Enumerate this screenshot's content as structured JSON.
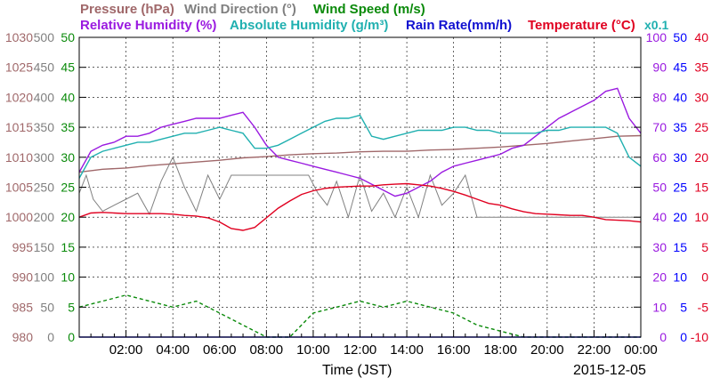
{
  "legend": {
    "pressure": "Pressure (hPa)",
    "wind_direction": "Wind Direction (°)",
    "wind_speed": "Wind Speed (m/s)",
    "relative_humidity": "Relative Humidity (%)",
    "absolute_humidity": "Absolute Humidity (g/m³)",
    "rain_rate": "Rain Rate(mm/h)",
    "temperature": "Temperature (°C)",
    "scale_note": "x0.1"
  },
  "footer": {
    "xlabel": "Time (JST)",
    "date": "2015-12-05"
  },
  "colors": {
    "pressure": "#a0686a",
    "wind_direction": "#808080",
    "wind_speed": "#0a8a0a",
    "relative_humidity": "#9a1ae0",
    "absolute_humidity": "#20b0b0",
    "rain_rate": "#1010d0",
    "temperature": "#e00020",
    "rain_rate_scale": "#0000ff"
  },
  "chart_data": {
    "type": "line",
    "xlabel": "Time (JST)",
    "xlim": [
      0,
      24
    ],
    "x_ticks": [
      "02:00",
      "04:00",
      "06:00",
      "08:00",
      "10:00",
      "12:00",
      "14:00",
      "16:00",
      "18:00",
      "20:00",
      "22:00",
      "00:00"
    ],
    "grid": true,
    "axes": {
      "pressure": {
        "lim": [
          980,
          1030
        ],
        "ticks": [
          "980",
          "985",
          "990",
          "995",
          "1000",
          "1005",
          "1010",
          "1015",
          "1020",
          "1025",
          "1030"
        ]
      },
      "wind_direction": {
        "lim": [
          0,
          500
        ],
        "ticks": [
          "0",
          "50",
          "100",
          "150",
          "200",
          "250",
          "300",
          "350",
          "400",
          "450",
          "500"
        ]
      },
      "wind_speed": {
        "lim": [
          0,
          50
        ],
        "ticks": [
          "0",
          "5",
          "10",
          "15",
          "20",
          "25",
          "30",
          "35",
          "40",
          "45",
          "50"
        ]
      },
      "relative_humidity": {
        "lim": [
          0,
          100
        ],
        "ticks": [
          "0",
          "10",
          "20",
          "30",
          "40",
          "50",
          "60",
          "70",
          "80",
          "90",
          "100"
        ]
      },
      "rain_rate": {
        "lim": [
          0,
          50
        ],
        "ticks": [
          "0",
          "5",
          "10",
          "15",
          "20",
          "25",
          "30",
          "35",
          "40",
          "45",
          "50"
        ]
      },
      "temperature": {
        "lim": [
          -10,
          40
        ],
        "ticks": [
          "-10",
          "-5",
          "0",
          "5",
          "10",
          "15",
          "20",
          "25",
          "30",
          "35",
          "40"
        ]
      }
    },
    "series": [
      {
        "name": "Pressure (hPa)",
        "axis": "pressure",
        "x": [
          0,
          1,
          2,
          3,
          4,
          5,
          6,
          7,
          8,
          9,
          10,
          11,
          12,
          13,
          14,
          15,
          16,
          17,
          18,
          19,
          20,
          21,
          22,
          23,
          24
        ],
        "values": [
          1007.5,
          1008.0,
          1008.2,
          1008.6,
          1008.9,
          1009.2,
          1009.5,
          1009.9,
          1010.1,
          1010.4,
          1010.6,
          1010.7,
          1010.9,
          1011.0,
          1011.0,
          1011.2,
          1011.3,
          1011.5,
          1011.7,
          1012.0,
          1012.3,
          1012.7,
          1013.1,
          1013.5,
          1013.6
        ]
      },
      {
        "name": "Wind Direction (°)",
        "axis": "wind_direction",
        "x": [
          0,
          0.3,
          0.6,
          1.0,
          1.5,
          2.0,
          2.5,
          3.0,
          3.5,
          4.0,
          4.5,
          5.0,
          5.5,
          6.0,
          6.5,
          7.0,
          8.0,
          9.0,
          9.5,
          9.8,
          10.2,
          10.6,
          11.0,
          11.5,
          12.0,
          12.5,
          13.0,
          13.5,
          14.0,
          14.5,
          15.0,
          15.5,
          16.0,
          16.5,
          17.0,
          18.0,
          19.0,
          20.0,
          21.0,
          22.0,
          23.0,
          24.0
        ],
        "values": [
          240,
          270,
          230,
          210,
          220,
          230,
          240,
          205,
          260,
          300,
          250,
          210,
          270,
          230,
          270,
          270,
          270,
          270,
          270,
          270,
          240,
          220,
          260,
          200,
          270,
          210,
          240,
          200,
          250,
          200,
          270,
          220,
          240,
          270,
          200,
          200,
          200,
          200,
          200,
          200,
          200,
          200
        ]
      },
      {
        "name": "Wind Speed (m/s)",
        "axis": "wind_speed",
        "x": [
          0,
          1,
          2,
          3,
          4,
          5,
          6,
          7,
          8,
          9,
          10,
          11,
          12,
          13,
          14,
          15,
          16,
          17,
          18,
          19,
          20,
          21,
          22,
          23,
          24
        ],
        "values": [
          5,
          6,
          7,
          6,
          5,
          6,
          4,
          2,
          0,
          0,
          4,
          5,
          6,
          5,
          6,
          5,
          4,
          2,
          1,
          0,
          0,
          0,
          0,
          0,
          0
        ]
      },
      {
        "name": "Relative Humidity (%)",
        "axis": "relative_humidity",
        "x": [
          0,
          0.5,
          1,
          1.5,
          2,
          2.5,
          3,
          3.5,
          4,
          4.5,
          5,
          5.5,
          6,
          6.5,
          7,
          7.5,
          8,
          8.5,
          9,
          9.5,
          10,
          10.5,
          11,
          11.5,
          12,
          12.5,
          13,
          13.5,
          14,
          14.5,
          15,
          15.5,
          16,
          16.5,
          17,
          17.5,
          18,
          18.5,
          19,
          19.5,
          20,
          20.5,
          21,
          21.5,
          22,
          22.5,
          23,
          23.5,
          24
        ],
        "values": [
          55,
          62,
          64,
          65,
          67,
          67,
          68,
          70,
          71,
          72,
          73,
          73,
          73,
          74,
          75,
          70,
          64,
          60,
          59,
          58,
          57,
          56,
          55,
          54,
          53,
          51,
          49,
          47,
          48,
          50,
          52,
          55,
          57,
          58,
          59,
          60,
          61,
          63,
          64,
          67,
          70,
          73,
          75,
          77,
          79,
          82,
          83,
          73,
          68
        ]
      },
      {
        "name": "Absolute Humidity (g/m³)",
        "axis": "absolute_humidity",
        "x": [
          0,
          0.5,
          1,
          1.5,
          2,
          2.5,
          3,
          3.5,
          4,
          4.5,
          5,
          5.5,
          6,
          6.5,
          7,
          7.5,
          8,
          8.5,
          9,
          9.5,
          10,
          10.5,
          11,
          11.5,
          12,
          12.5,
          13,
          13.5,
          14,
          14.5,
          15,
          15.5,
          16,
          16.5,
          17,
          17.5,
          18,
          18.5,
          19,
          19.5,
          20,
          20.5,
          21,
          21.5,
          22,
          22.5,
          23,
          23.5,
          24
        ],
        "values": [
          53,
          60,
          62,
          63,
          64,
          65,
          65,
          66,
          67,
          68,
          68,
          69,
          70,
          69,
          68,
          63,
          63,
          64,
          66,
          68,
          70,
          72,
          73,
          73,
          74,
          67,
          66,
          67,
          68,
          69,
          69,
          69,
          70,
          70,
          69,
          69,
          68,
          68,
          68,
          68,
          69,
          69,
          70,
          70,
          70,
          70,
          68,
          60,
          57
        ]
      },
      {
        "name": "Rain Rate(mm/h)",
        "axis": "rain_rate",
        "x": [
          0,
          24
        ],
        "values": [
          0,
          0
        ]
      },
      {
        "name": "Temperature (°C)",
        "axis": "temperature",
        "x": [
          0,
          0.5,
          1,
          1.5,
          2,
          2.5,
          3,
          3.5,
          4,
          4.5,
          5,
          5.5,
          6,
          6.5,
          7,
          7.5,
          8,
          8.5,
          9,
          9.5,
          10,
          10.5,
          11,
          11.5,
          12,
          12.5,
          13,
          13.5,
          14,
          14.5,
          15,
          15.5,
          16,
          16.5,
          17,
          17.5,
          18,
          18.5,
          19,
          19.5,
          20,
          20.5,
          21,
          21.5,
          22,
          22.5,
          23,
          23.5,
          24
        ],
        "values": [
          10.0,
          10.7,
          10.8,
          10.7,
          10.6,
          10.6,
          10.6,
          10.6,
          10.5,
          10.3,
          10.2,
          9.9,
          9.2,
          8.1,
          7.8,
          8.3,
          9.9,
          11.5,
          12.7,
          13.8,
          14.4,
          14.8,
          15.0,
          15.1,
          15.2,
          15.2,
          15.4,
          15.5,
          15.6,
          15.4,
          15.2,
          14.8,
          14.3,
          13.7,
          13.0,
          12.3,
          12.0,
          11.4,
          10.9,
          10.6,
          10.5,
          10.4,
          10.3,
          10.3,
          10.0,
          9.6,
          9.5,
          9.4,
          9.2
        ]
      }
    ]
  }
}
